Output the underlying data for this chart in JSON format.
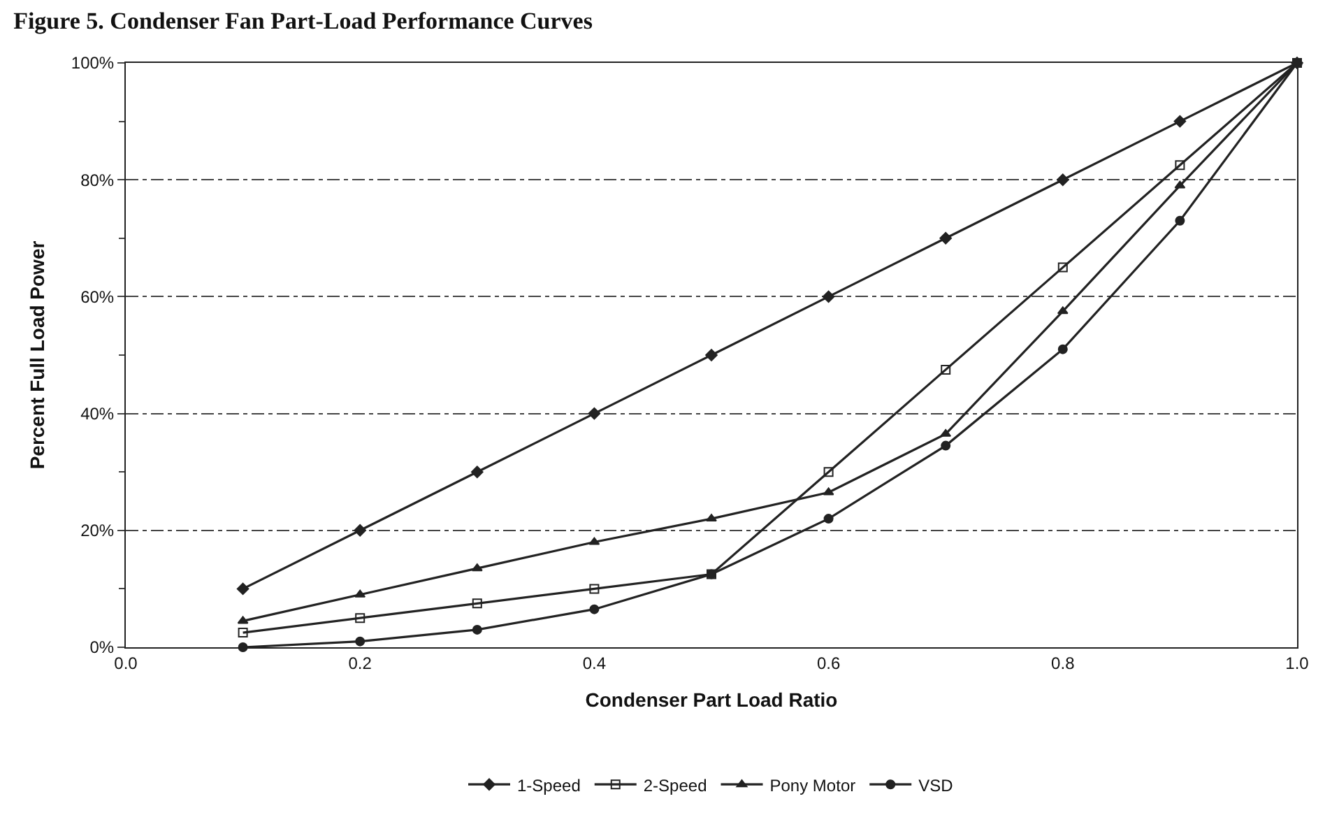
{
  "chart_data": {
    "type": "line",
    "title": "Figure 5. Condenser Fan Part-Load Performance Curves",
    "xlabel": "Condenser Part Load Ratio",
    "ylabel": "Percent Full Load Power",
    "x": [
      0.1,
      0.2,
      0.3,
      0.4,
      0.5,
      0.6,
      0.7,
      0.8,
      0.9,
      1.0
    ],
    "series": [
      {
        "name": "1-Speed",
        "color": "#222222",
        "marker": "diamond",
        "values": [
          10,
          20,
          30,
          40,
          50,
          60,
          70,
          80,
          90,
          100
        ]
      },
      {
        "name": "2-Speed",
        "color": "#222222",
        "marker": "square",
        "values": [
          2.5,
          5,
          7.5,
          10,
          12.5,
          30,
          47.5,
          65,
          82.5,
          100
        ]
      },
      {
        "name": "Pony Motor",
        "color": "#222222",
        "marker": "triangle",
        "values": [
          4.5,
          9,
          13.5,
          18,
          22,
          26.5,
          36.5,
          57.5,
          79,
          100
        ]
      },
      {
        "name": "VSD",
        "color": "#222222",
        "marker": "circle",
        "values": [
          0,
          1,
          3,
          6.5,
          12.5,
          22,
          34.5,
          51,
          73,
          100
        ]
      }
    ],
    "xlim": [
      0,
      1
    ],
    "xticks": [
      {
        "value": 0,
        "label": "0.0"
      },
      {
        "value": 0.2,
        "label": "0.2"
      },
      {
        "value": 0.4,
        "label": "0.4"
      },
      {
        "value": 0.6,
        "label": "0.6"
      },
      {
        "value": 0.8,
        "label": "0.8"
      },
      {
        "value": 1,
        "label": "1.0"
      }
    ],
    "ylim": [
      0,
      100
    ],
    "yticks": [
      {
        "value": 0,
        "label": "0%"
      },
      {
        "value": 20,
        "label": "20%"
      },
      {
        "value": 40,
        "label": "40%"
      },
      {
        "value": 60,
        "label": "60%"
      },
      {
        "value": 80,
        "label": "80%"
      },
      {
        "value": 100,
        "label": "100%"
      }
    ],
    "grid": "y",
    "legend": "bottom",
    "line_style": "solid"
  }
}
